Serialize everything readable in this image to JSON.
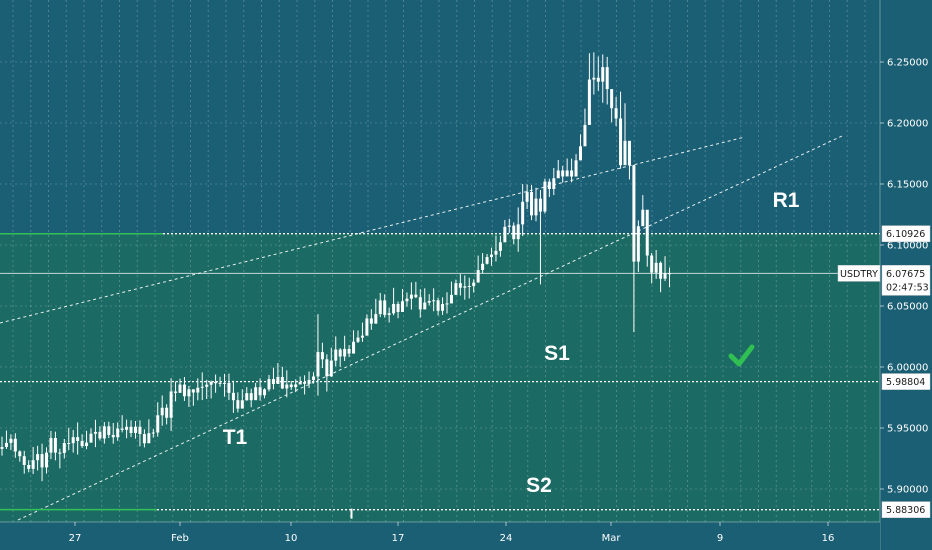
{
  "chart_data": {
    "type": "candlestick",
    "symbol": "USDTRY",
    "countdown": "02:47:53",
    "last_price": 6.07675,
    "x_tick_labels": [
      "27",
      "Feb",
      "10",
      "17",
      "24",
      "Mar",
      "9",
      "16"
    ],
    "y_tick_labels": [
      5.9,
      5.95,
      6.0,
      6.05,
      6.1,
      6.15,
      6.2,
      6.25
    ],
    "y_tick_format": "fixed5",
    "ylim": [
      5.874,
      6.3
    ],
    "levels": [
      {
        "name": "R1",
        "label": "R1",
        "price": 6.10926,
        "tag": "6.10926"
      },
      {
        "name": "S1",
        "label": "S1",
        "price": 5.98804,
        "tag": "5.98804"
      },
      {
        "name": "S2",
        "label": "S2",
        "price": 5.88306,
        "tag": "5.88306"
      }
    ],
    "trendline_label": "T1",
    "colors": {
      "background": "#1b5f74",
      "zone": "#1b6a63",
      "candle": "#ffffff",
      "green_line": "#33c25a",
      "checkmark": "#2fbf52"
    },
    "candles": [
      [
        5.9329,
        5.9344,
        5.9429,
        5.9274
      ],
      [
        5.9344,
        5.9378,
        5.9479,
        5.9328
      ],
      [
        5.9378,
        5.9412,
        5.9449,
        5.9319
      ],
      [
        5.9412,
        5.9308,
        5.9457,
        5.9256
      ],
      [
        5.9308,
        5.9269,
        5.9317,
        5.9224
      ],
      [
        5.9269,
        5.9197,
        5.9313,
        5.9126
      ],
      [
        5.9197,
        5.9165,
        5.9236,
        5.9137
      ],
      [
        5.9165,
        5.9236,
        5.9344,
        5.9123
      ],
      [
        5.9236,
        5.9286,
        5.9354,
        5.9152
      ],
      [
        5.9286,
        5.9177,
        5.9371,
        5.9064
      ],
      [
        5.9177,
        5.9298,
        5.9341,
        5.9127
      ],
      [
        5.9298,
        5.9418,
        5.9476,
        5.9245
      ],
      [
        5.9418,
        5.9298,
        5.947,
        5.9235
      ],
      [
        5.9298,
        5.9295,
        5.933,
        5.9169
      ],
      [
        5.9295,
        5.9377,
        5.941,
        5.925
      ],
      [
        5.9377,
        5.9376,
        5.9502,
        5.9318
      ],
      [
        5.9376,
        5.9425,
        5.9484,
        5.9298
      ],
      [
        5.9425,
        5.9394,
        5.9546,
        5.9282
      ],
      [
        5.9394,
        5.9352,
        5.9449,
        5.9336
      ],
      [
        5.9352,
        5.938,
        5.9477,
        5.9326
      ],
      [
        5.938,
        5.9453,
        5.9497,
        5.9384
      ],
      [
        5.9453,
        5.9468,
        5.9567,
        5.9343
      ],
      [
        5.9468,
        5.9414,
        5.9514,
        5.9398
      ],
      [
        5.9414,
        5.9514,
        5.9549,
        5.9372
      ],
      [
        5.9514,
        5.9443,
        5.9552,
        5.9418
      ],
      [
        5.9443,
        5.9424,
        5.9541,
        5.9371
      ],
      [
        5.9424,
        5.9495,
        5.9546,
        5.9395
      ],
      [
        5.9495,
        5.9485,
        5.9605,
        5.9464
      ],
      [
        5.9485,
        5.951,
        5.9569,
        5.9416
      ],
      [
        5.951,
        5.9459,
        5.9563,
        5.9426
      ],
      [
        5.9459,
        5.951,
        5.9557,
        5.9413
      ],
      [
        5.951,
        5.9451,
        5.9563,
        5.935
      ],
      [
        5.9451,
        5.9375,
        5.9489,
        5.9341
      ],
      [
        5.9375,
        5.9457,
        5.9571,
        5.9384
      ],
      [
        5.9457,
        5.9463,
        5.9493,
        5.9421
      ],
      [
        5.9463,
        5.9604,
        5.9711,
        5.9429
      ],
      [
        5.9604,
        5.9666,
        5.9767,
        5.9518
      ],
      [
        5.9666,
        5.9584,
        5.9695,
        5.9529
      ],
      [
        5.9584,
        5.9799,
        5.9908,
        5.9476
      ],
      [
        5.9799,
        5.9788,
        5.9881,
        5.9718
      ],
      [
        5.9788,
        5.9856,
        5.9905,
        5.9796
      ],
      [
        5.9856,
        5.976,
        5.9918,
        5.9722
      ],
      [
        5.976,
        5.9817,
        5.9845,
        5.9673
      ],
      [
        5.9817,
        5.9791,
        5.9818,
        5.9682
      ],
      [
        5.9791,
        5.983,
        5.9907,
        5.9727
      ],
      [
        5.983,
        5.9838,
        5.9956,
        5.9729
      ],
      [
        5.9838,
        5.9855,
        5.9895,
        5.9738
      ],
      [
        5.9855,
        5.9878,
        5.9889,
        5.9742
      ],
      [
        5.9878,
        5.9867,
        5.9938,
        5.9789
      ],
      [
        5.9867,
        5.987,
        5.992,
        5.9838
      ],
      [
        5.987,
        5.9869,
        5.9944,
        5.9757
      ],
      [
        5.9869,
        5.9788,
        5.9946,
        5.9729
      ],
      [
        5.9788,
        5.9728,
        5.9888,
        5.9624
      ],
      [
        5.9728,
        5.9659,
        5.9792,
        5.9628
      ],
      [
        5.9659,
        5.9727,
        5.9818,
        5.9693
      ],
      [
        5.9727,
        5.9786,
        5.9835,
        5.9724
      ],
      [
        5.9786,
        5.9728,
        5.9822,
        5.967
      ],
      [
        5.9728,
        5.9834,
        5.9869,
        5.9787
      ],
      [
        5.9834,
        5.9769,
        5.9907,
        5.9724
      ],
      [
        5.9769,
        5.9817,
        5.9826,
        5.9743
      ],
      [
        5.9817,
        5.9901,
        5.9934,
        5.98
      ],
      [
        5.9901,
        5.9861,
        5.9995,
        5.9817
      ],
      [
        5.9861,
        5.9918,
        6.0033,
        5.9885
      ],
      [
        5.9918,
        5.9824,
        6.0002,
        5.9819
      ],
      [
        5.9824,
        5.9856,
        5.9973,
        5.9751
      ],
      [
        5.9856,
        5.9835,
        5.9886,
        5.9812
      ],
      [
        5.9835,
        5.9857,
        5.9899,
        5.9794
      ],
      [
        5.9857,
        5.9876,
        5.9922,
        5.9857
      ],
      [
        5.9876,
        5.9862,
        5.9932,
        5.9775
      ],
      [
        5.9862,
        5.9894,
        5.9963,
        5.9828
      ],
      [
        5.9894,
        5.9922,
        5.9957,
        5.9864
      ],
      [
        5.9922,
        6.0122,
        6.0433,
        5.9766
      ],
      [
        6.0122,
        6.0063,
        6.0199,
        5.9991
      ],
      [
        6.0063,
        5.9924,
        6.0104,
        5.9799
      ],
      [
        5.9924,
        6.0052,
        6.0158,
        5.9918
      ],
      [
        6.0052,
        6.0143,
        6.0251,
        6.0005
      ],
      [
        6.0143,
        6.0086,
        6.0155,
        6.0001
      ],
      [
        6.0086,
        6.0148,
        6.0256,
        6.0049
      ],
      [
        6.0148,
        6.011,
        6.0179,
        6.0081
      ],
      [
        6.011,
        6.0207,
        6.0301,
        6.0136
      ],
      [
        6.0207,
        6.0241,
        6.0299,
        6.0197
      ],
      [
        6.0241,
        6.0257,
        6.0364,
        6.0206
      ],
      [
        6.0257,
        6.0398,
        6.0431,
        6.0354
      ],
      [
        6.0398,
        6.0355,
        6.0474,
        6.0305
      ],
      [
        6.0355,
        6.0434,
        6.0559,
        6.0397
      ],
      [
        6.0434,
        6.0546,
        6.0607,
        6.0409
      ],
      [
        6.0546,
        6.0427,
        6.0596,
        6.0405
      ],
      [
        6.0427,
        6.044,
        6.0487,
        6.0365
      ],
      [
        6.044,
        6.0517,
        6.0649,
        6.0424
      ],
      [
        6.0517,
        6.0451,
        6.0537,
        6.04
      ],
      [
        6.0451,
        6.0539,
        6.0639,
        6.0503
      ],
      [
        6.0539,
        6.056,
        6.0611,
        6.0494
      ],
      [
        6.056,
        6.0593,
        6.0694,
        6.0471
      ],
      [
        6.0593,
        6.0572,
        6.0698,
        6.0565
      ],
      [
        6.0572,
        6.0472,
        6.0638,
        6.0404
      ],
      [
        6.0472,
        6.0528,
        6.0645,
        6.0475
      ],
      [
        6.0528,
        6.0541,
        6.0597,
        6.0504
      ],
      [
        6.0541,
        6.0547,
        6.0645,
        6.0457
      ],
      [
        6.0547,
        6.0461,
        6.0568,
        6.0423
      ],
      [
        6.0461,
        6.0516,
        6.0571,
        6.0426
      ],
      [
        6.0516,
        6.0521,
        6.0613,
        6.0439
      ],
      [
        6.0521,
        6.0591,
        6.07,
        6.0549
      ],
      [
        6.0591,
        6.0687,
        6.0716,
        6.0645
      ],
      [
        6.0687,
        6.065,
        6.0762,
        6.0586
      ],
      [
        6.065,
        6.0661,
        6.0751,
        6.0552
      ],
      [
        6.0661,
        6.0664,
        6.0732,
        6.0562
      ],
      [
        6.0664,
        6.0692,
        6.0719,
        6.061
      ],
      [
        6.0692,
        6.0795,
        6.0913,
        6.0735
      ],
      [
        6.0795,
        6.0846,
        6.0934,
        6.0767
      ],
      [
        6.0846,
        6.0901,
        6.0926,
        6.084
      ],
      [
        6.0901,
        6.0921,
        6.0978,
        6.083
      ],
      [
        6.0921,
        6.0952,
        6.1078,
        6.0865
      ],
      [
        6.0952,
        6.1022,
        6.1076,
        6.0904
      ],
      [
        6.1022,
        6.1149,
        6.1205,
        6.1059
      ],
      [
        6.1149,
        6.1159,
        6.1215,
        6.1099
      ],
      [
        6.1159,
        6.1048,
        6.1185,
        6.1005
      ],
      [
        6.1048,
        6.1169,
        6.1308,
        6.0944
      ],
      [
        6.1169,
        6.1354,
        6.1499,
        6.1073
      ],
      [
        6.1354,
        6.1434,
        6.1497,
        6.1295
      ],
      [
        6.1434,
        6.1243,
        6.1492,
        6.1204
      ],
      [
        6.1243,
        6.138,
        6.1469,
        6.1195
      ],
      [
        6.138,
        6.1274,
        6.1451,
        6.0677
      ],
      [
        6.1274,
        6.1519,
        6.1544,
        6.1258
      ],
      [
        6.1519,
        6.1459,
        6.1543,
        6.1393
      ],
      [
        6.1459,
        6.1547,
        6.1631,
        6.1409
      ],
      [
        6.1547,
        6.1611,
        6.1697,
        6.1593
      ],
      [
        6.1611,
        6.1562,
        6.1649,
        6.1511
      ],
      [
        6.1562,
        6.1611,
        6.1709,
        6.1584
      ],
      [
        6.1611,
        6.1561,
        6.1708,
        6.1514
      ],
      [
        6.1561,
        6.1694,
        6.1745,
        6.1604
      ],
      [
        6.1694,
        6.1809,
        6.1908,
        6.1697
      ],
      [
        6.1809,
        6.1984,
        6.2118,
        6.1906
      ],
      [
        6.1984,
        6.2356,
        6.2572,
        6.2071
      ],
      [
        6.2356,
        6.2371,
        6.2579,
        6.2233
      ],
      [
        6.2371,
        6.2339,
        6.2545,
        6.2264
      ],
      [
        6.2339,
        6.2458,
        6.2562,
        6.2166
      ],
      [
        6.2458,
        6.2278,
        6.2542,
        6.2152
      ],
      [
        6.2278,
        6.2121,
        6.2272,
        6.2006
      ],
      [
        6.2121,
        6.2037,
        6.2214,
        6.1975
      ],
      [
        6.2037,
        6.1654,
        6.2257,
        6.1625
      ],
      [
        6.1654,
        6.1854,
        6.2162,
        6.1724
      ],
      [
        6.1854,
        6.1654,
        6.1667,
        6.1537
      ],
      [
        6.1654,
        6.0864,
        6.1657,
        6.0286
      ],
      [
        6.0864,
        6.1154,
        6.1202,
        6.0779
      ],
      [
        6.1154,
        6.1289,
        6.1409,
        6.1165
      ],
      [
        6.1289,
        6.0914,
        6.1063,
        6.0822
      ],
      [
        6.0914,
        6.0774,
        6.0935,
        6.0685
      ],
      [
        6.0774,
        6.0854,
        6.0959,
        6.0722
      ],
      [
        6.0854,
        6.0724,
        6.0866,
        6.0613
      ],
      [
        6.0724,
        6.0769,
        6.0908,
        6.0704
      ],
      [
        6.0769,
        6.0768,
        6.0816,
        6.0654
      ]
    ]
  }
}
